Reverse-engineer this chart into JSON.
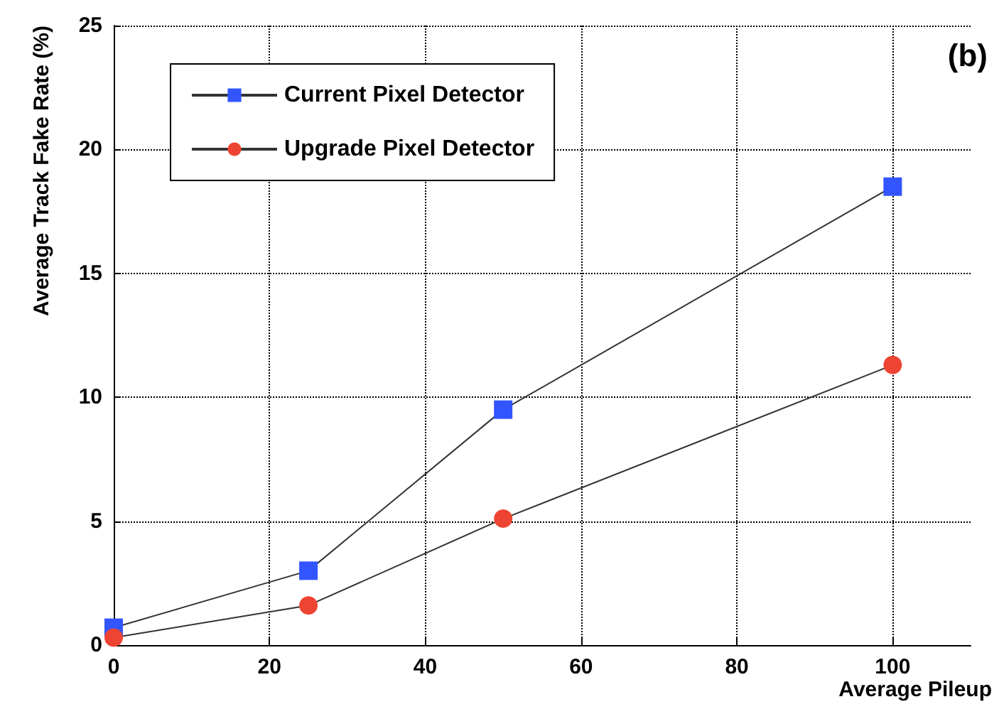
{
  "chart_data": {
    "type": "line",
    "xlabel": "Average Pileup",
    "ylabel": "Average Track Fake Rate (%)",
    "annotations": [
      "(b)"
    ],
    "x": [
      0,
      25,
      50,
      100
    ],
    "series": [
      {
        "name": "Current Pixel Detector",
        "color": "#3355ff",
        "marker": "square",
        "values": [
          0.7,
          3.0,
          9.5,
          18.5
        ]
      },
      {
        "name": "Upgrade Pixel Detector",
        "color": "#ee4433",
        "marker": "circle",
        "values": [
          0.3,
          1.6,
          5.1,
          11.3
        ]
      }
    ],
    "xlim": [
      0,
      110
    ],
    "xticks": [
      0,
      20,
      40,
      60,
      80,
      100
    ],
    "ylim": [
      0,
      25
    ],
    "yticks": [
      0,
      5,
      10,
      15,
      20,
      25
    ],
    "grid": true,
    "legend": "top left",
    "line_style": "solid"
  }
}
